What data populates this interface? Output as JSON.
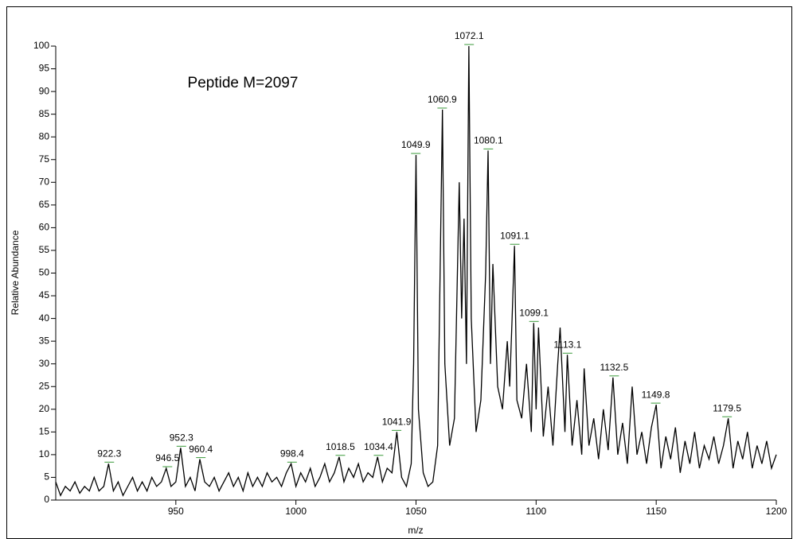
{
  "chart_data": {
    "type": "line",
    "annotation": "Peptide M=2097",
    "xlabel": "m/z",
    "ylabel": "Relative Abundance",
    "xlim": [
      900,
      1200
    ],
    "ylim": [
      0,
      100
    ],
    "xticks": [
      950,
      1000,
      1050,
      1100,
      1150,
      1200
    ],
    "yticks": [
      0,
      5,
      10,
      15,
      20,
      25,
      30,
      35,
      40,
      45,
      50,
      55,
      60,
      65,
      70,
      75,
      80,
      85,
      90,
      95,
      100
    ],
    "x": [
      900,
      902,
      904,
      906,
      908,
      910,
      912,
      914,
      916,
      918,
      920,
      922,
      924,
      926,
      928,
      930,
      932,
      934,
      936,
      938,
      940,
      942,
      944,
      946,
      948,
      950,
      952,
      954,
      956,
      958,
      960,
      962,
      964,
      966,
      968,
      970,
      972,
      974,
      976,
      978,
      980,
      982,
      984,
      986,
      988,
      990,
      992,
      994,
      996,
      998,
      1000,
      1002,
      1004,
      1006,
      1008,
      1010,
      1012,
      1014,
      1016,
      1018,
      1020,
      1022,
      1024,
      1026,
      1028,
      1030,
      1032,
      1034,
      1036,
      1038,
      1040,
      1042,
      1044,
      1046,
      1048,
      1049,
      1050,
      1051,
      1053,
      1055,
      1057,
      1059,
      1061,
      1062,
      1064,
      1066,
      1068,
      1069,
      1070,
      1071,
      1072,
      1073,
      1075,
      1077,
      1079,
      1080,
      1081,
      1082,
      1084,
      1086,
      1088,
      1089,
      1090,
      1091,
      1092,
      1094,
      1096,
      1098,
      1099,
      1100,
      1101,
      1103,
      1105,
      1107,
      1109,
      1110,
      1112,
      1113,
      1115,
      1117,
      1119,
      1120,
      1122,
      1124,
      1126,
      1128,
      1130,
      1132,
      1134,
      1136,
      1138,
      1140,
      1142,
      1144,
      1146,
      1148,
      1150,
      1152,
      1154,
      1156,
      1158,
      1160,
      1162,
      1164,
      1166,
      1168,
      1170,
      1172,
      1174,
      1176,
      1178,
      1180,
      1182,
      1184,
      1186,
      1188,
      1190,
      1192,
      1194,
      1196,
      1198,
      1200
    ],
    "series": [
      {
        "color": "#000000",
        "values": [
          4,
          1,
          3,
          2,
          4,
          1.5,
          3,
          2,
          5,
          2,
          3,
          8,
          2,
          4,
          1,
          3,
          5,
          2,
          4,
          2,
          5,
          3,
          4,
          7,
          3,
          4,
          11.5,
          3,
          5,
          2,
          9,
          4,
          3,
          5,
          2,
          4,
          6,
          3,
          5,
          2,
          6,
          3,
          5,
          3,
          6,
          4,
          5,
          3,
          6,
          8,
          3,
          6,
          4,
          7,
          3,
          5,
          8,
          4,
          6,
          9.5,
          4,
          7,
          5,
          8,
          4,
          6,
          5,
          9.5,
          4,
          7,
          6,
          15,
          5,
          3,
          8,
          30,
          76,
          20,
          6,
          3,
          4,
          12,
          86,
          30,
          12,
          18,
          70,
          40,
          62,
          30,
          100,
          40,
          15,
          22,
          50,
          77,
          30,
          52,
          25,
          20,
          35,
          25,
          40,
          56,
          22,
          18,
          30,
          15,
          39,
          20,
          38,
          14,
          25,
          12,
          30,
          38,
          15,
          32,
          12,
          22,
          10,
          29,
          12,
          18,
          9,
          20,
          11,
          27,
          10,
          17,
          8,
          25,
          10,
          15,
          8,
          16,
          21,
          7,
          14,
          9,
          16,
          6,
          13,
          8,
          15,
          7,
          12,
          9,
          14,
          8,
          12,
          18,
          7,
          13,
          9,
          15,
          7,
          12,
          8,
          13,
          7,
          10
        ]
      }
    ],
    "peaks": [
      {
        "mz": 922.3,
        "intensity": 8
      },
      {
        "mz": 946.5,
        "intensity": 7
      },
      {
        "mz": 952.3,
        "intensity": 11.5
      },
      {
        "mz": 960.4,
        "intensity": 9
      },
      {
        "mz": 998.4,
        "intensity": 8
      },
      {
        "mz": 1018.5,
        "intensity": 9.5
      },
      {
        "mz": 1034.4,
        "intensity": 9.5
      },
      {
        "mz": 1041.9,
        "intensity": 15
      },
      {
        "mz": 1049.9,
        "intensity": 76
      },
      {
        "mz": 1060.9,
        "intensity": 86
      },
      {
        "mz": 1072.1,
        "intensity": 100
      },
      {
        "mz": 1080.1,
        "intensity": 77
      },
      {
        "mz": 1091.1,
        "intensity": 56
      },
      {
        "mz": 1099.1,
        "intensity": 39
      },
      {
        "mz": 1113.1,
        "intensity": 32
      },
      {
        "mz": 1132.5,
        "intensity": 27
      },
      {
        "mz": 1149.8,
        "intensity": 21
      },
      {
        "mz": 1179.5,
        "intensity": 18
      }
    ]
  }
}
